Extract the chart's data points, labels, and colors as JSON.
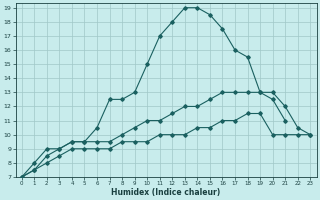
{
  "xlabel": "Humidex (Indice chaleur)",
  "background_color": "#c8ecec",
  "grid_color": "#a0c8c8",
  "line_color": "#1a6060",
  "xlim": [
    -0.5,
    23.5
  ],
  "ylim": [
    7,
    19.3
  ],
  "xticks": [
    0,
    1,
    2,
    3,
    4,
    5,
    6,
    7,
    8,
    9,
    10,
    11,
    12,
    13,
    14,
    15,
    16,
    17,
    18,
    19,
    20,
    21,
    22,
    23
  ],
  "yticks": [
    7,
    8,
    9,
    10,
    11,
    12,
    13,
    14,
    15,
    16,
    17,
    18,
    19
  ],
  "line1_x": [
    0,
    1,
    2,
    3,
    4,
    5,
    6,
    7,
    8,
    9,
    10,
    11,
    12,
    13,
    14,
    15,
    16,
    17,
    18,
    19,
    20,
    21
  ],
  "line1_y": [
    7.0,
    8.0,
    9.0,
    9.0,
    9.5,
    9.5,
    10.5,
    12.5,
    12.5,
    13.0,
    15.0,
    17.0,
    18.0,
    19.0,
    19.0,
    18.5,
    17.5,
    16.0,
    15.5,
    13.0,
    12.5,
    11.0
  ],
  "line2_x": [
    0,
    1,
    2,
    3,
    4,
    5,
    6,
    7,
    8,
    9,
    10,
    11,
    12,
    13,
    14,
    15,
    16,
    17,
    18,
    19,
    20,
    21,
    22,
    23
  ],
  "line2_y": [
    7.0,
    7.5,
    8.5,
    9.0,
    9.5,
    9.5,
    9.5,
    9.5,
    10.0,
    10.5,
    11.0,
    11.0,
    11.5,
    12.0,
    12.0,
    12.5,
    13.0,
    13.0,
    13.0,
    13.0,
    13.0,
    12.0,
    10.5,
    10.0
  ],
  "line3_x": [
    0,
    1,
    2,
    3,
    4,
    5,
    6,
    7,
    8,
    9,
    10,
    11,
    12,
    13,
    14,
    15,
    16,
    17,
    18,
    19,
    20,
    21,
    22,
    23
  ],
  "line3_y": [
    7.0,
    7.5,
    8.0,
    8.5,
    9.0,
    9.0,
    9.0,
    9.0,
    9.5,
    9.5,
    9.5,
    10.0,
    10.0,
    10.0,
    10.5,
    10.5,
    11.0,
    11.0,
    11.5,
    11.5,
    10.0,
    10.0,
    10.0,
    10.0
  ]
}
